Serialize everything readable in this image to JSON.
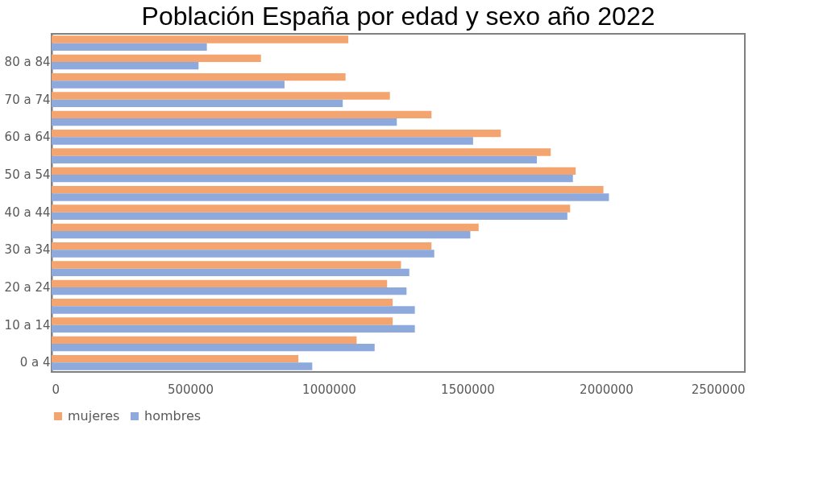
{
  "chart_data": {
    "type": "bar",
    "orientation": "horizontal",
    "title": "Población España por edad y sexo año 2022",
    "categories": [
      null,
      "80 a 84",
      null,
      "70 a 74",
      null,
      "60 a 64",
      null,
      "50 a 54",
      null,
      "40 a 44",
      null,
      "30 a 34",
      null,
      "20 a 24",
      null,
      "10 a 14",
      null,
      "0 a 4"
    ],
    "series": [
      {
        "name": "mujeres",
        "color": "#f4a46e",
        "values": [
          1070000,
          755000,
          1060000,
          1220000,
          1370000,
          1620000,
          1800000,
          1890000,
          1990000,
          1870000,
          1540000,
          1370000,
          1260000,
          1210000,
          1230000,
          1230000,
          1100000,
          890000
        ]
      },
      {
        "name": "hombres",
        "color": "#8eaadc",
        "values": [
          560000,
          530000,
          840000,
          1050000,
          1245000,
          1520000,
          1750000,
          1880000,
          2010000,
          1860000,
          1510000,
          1380000,
          1290000,
          1280000,
          1310000,
          1310000,
          1165000,
          940000
        ]
      }
    ],
    "xlim": [
      0,
      2500000
    ],
    "xticks": [
      0,
      500000,
      1000000,
      1500000,
      2000000,
      2500000
    ],
    "grid": false,
    "legend": "bottom"
  }
}
